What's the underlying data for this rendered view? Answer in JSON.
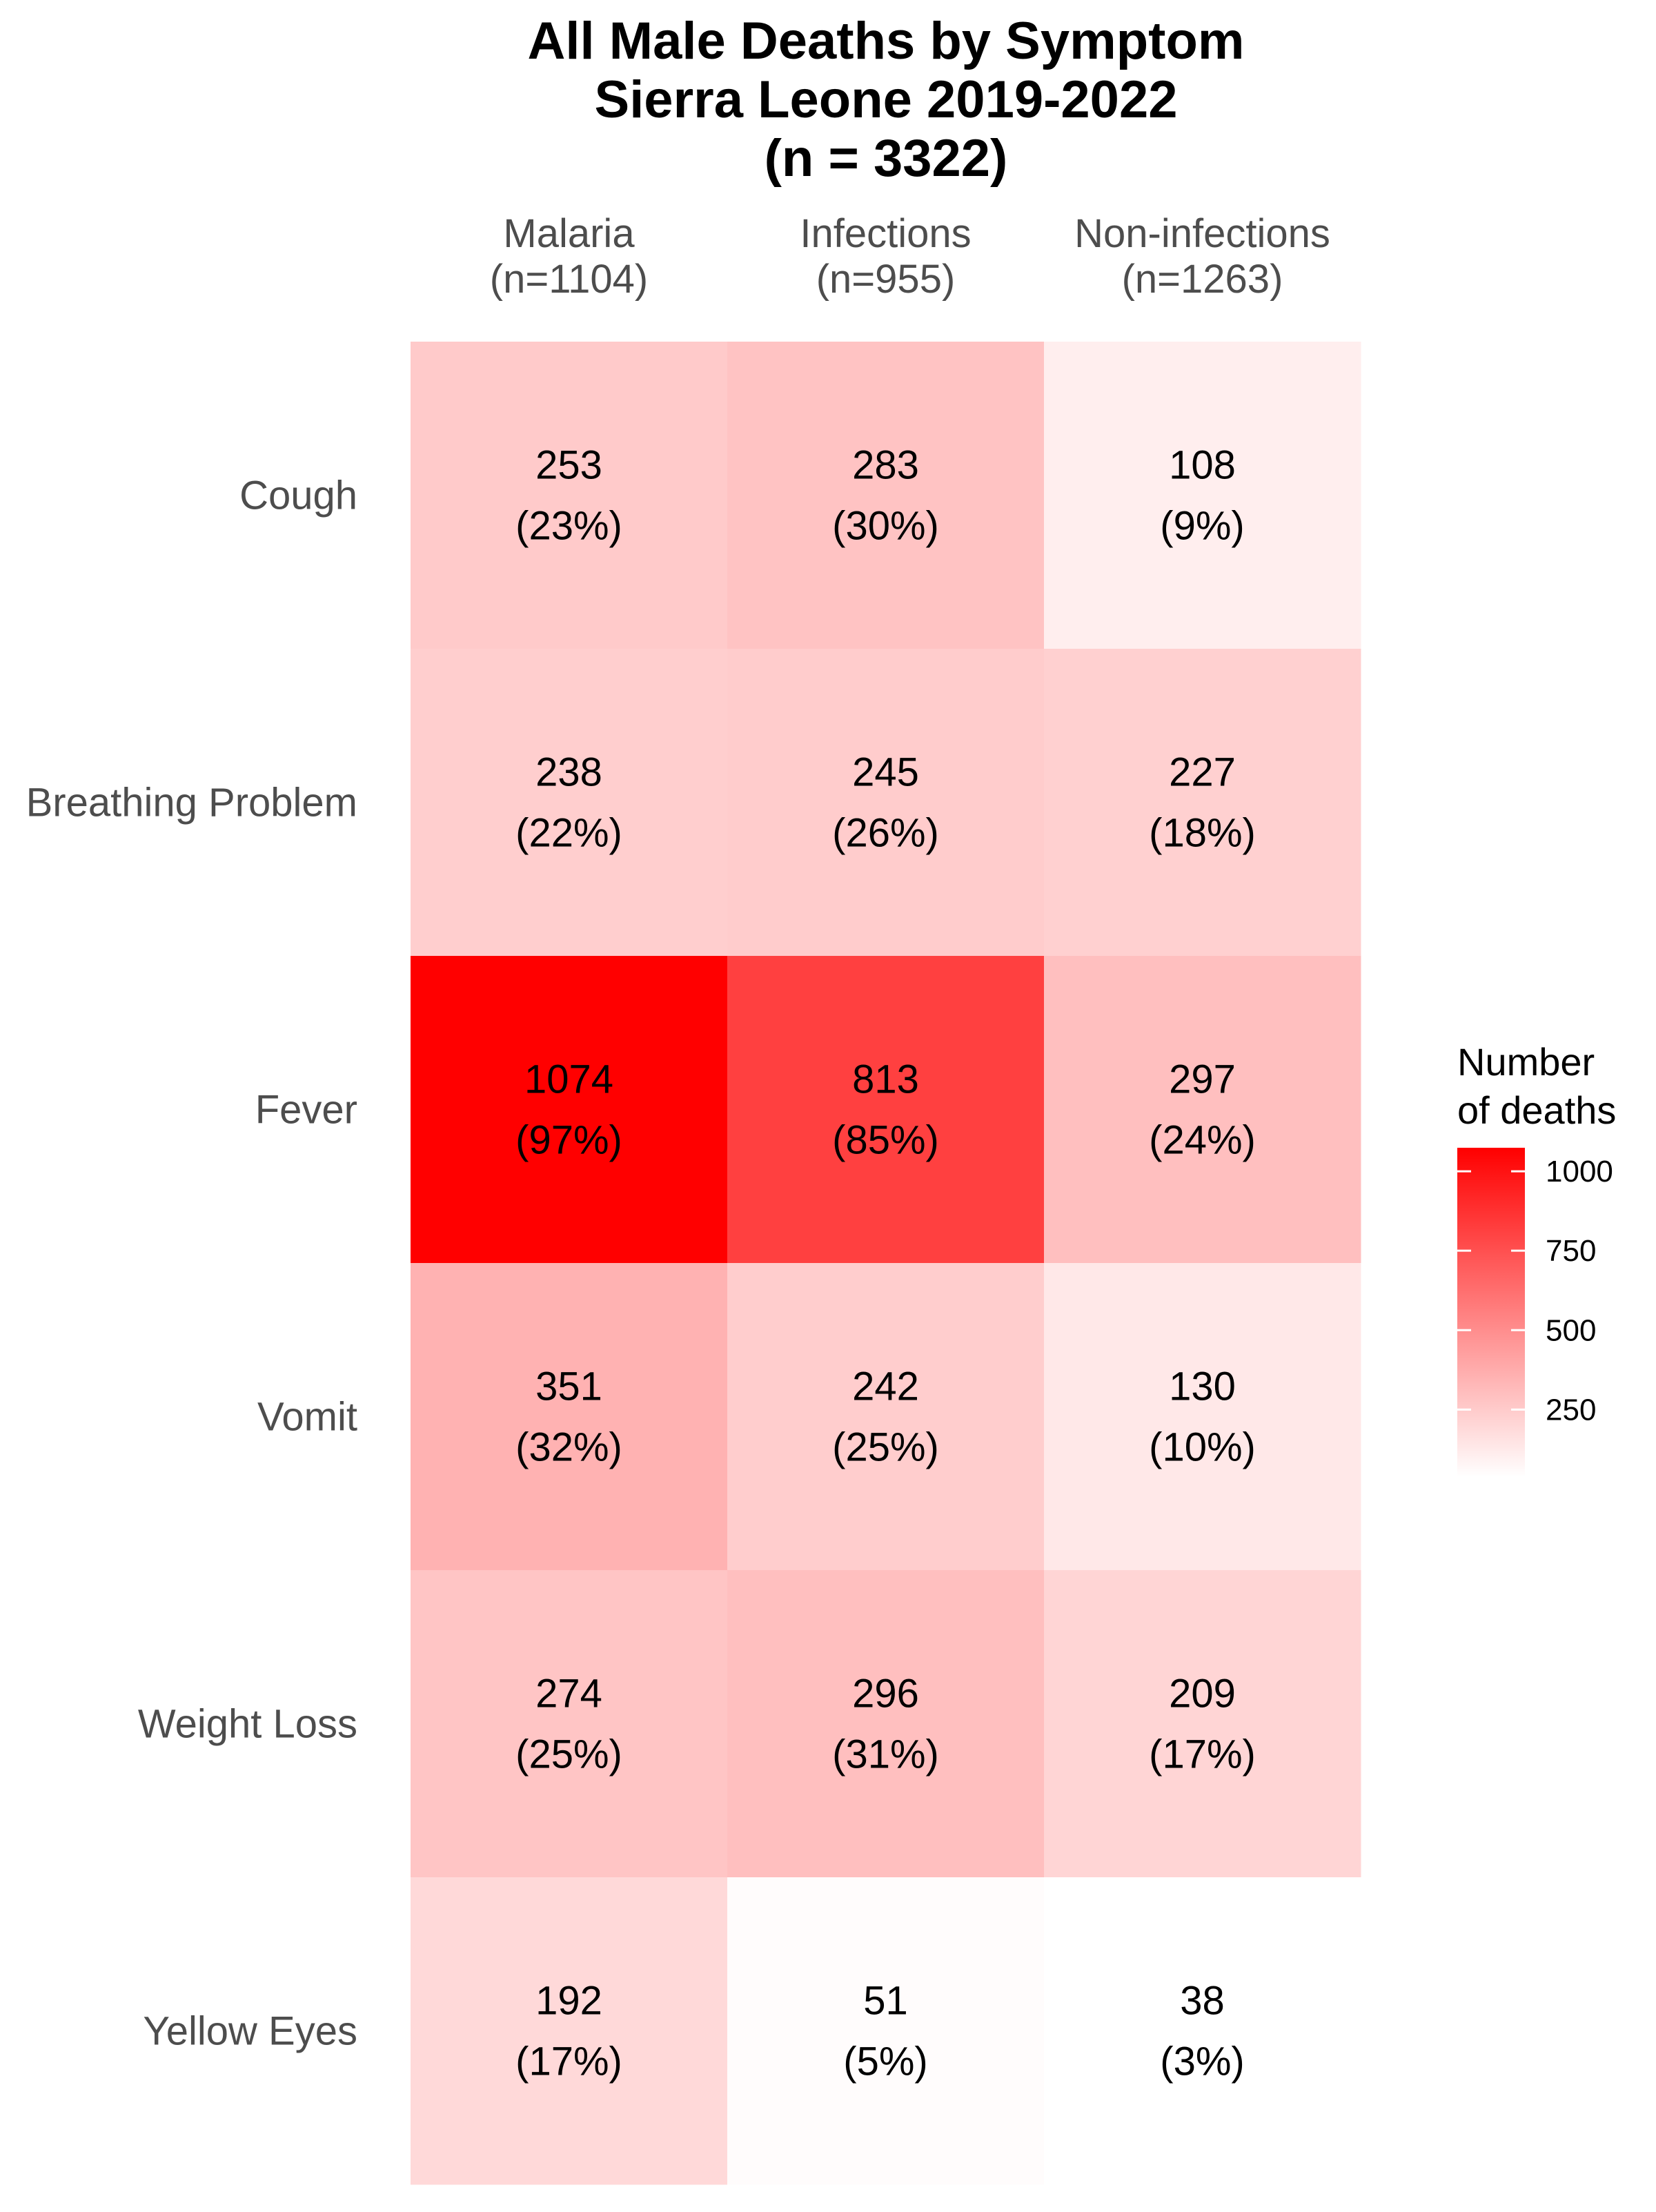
{
  "chart_data": {
    "type": "heatmap",
    "title": [
      "All Male Deaths by Symptom",
      "Sierra Leone 2019-2022",
      "(n = 3322)"
    ],
    "columns": [
      {
        "name": "Malaria",
        "n_label": "(n=1104)"
      },
      {
        "name": "Infections",
        "n_label": "(n=955)"
      },
      {
        "name": "Non-infections",
        "n_label": "(n=1263)"
      }
    ],
    "rows": [
      "Cough",
      "Breathing Problem",
      "Fever",
      "Vomit",
      "Weight Loss",
      "Yellow Eyes"
    ],
    "values": [
      [
        253,
        283,
        108
      ],
      [
        238,
        245,
        227
      ],
      [
        1074,
        813,
        297
      ],
      [
        351,
        242,
        130
      ],
      [
        274,
        296,
        209
      ],
      [
        192,
        51,
        38
      ]
    ],
    "percent_labels": [
      [
        "(23%)",
        "(30%)",
        "(9%)"
      ],
      [
        "(22%)",
        "(26%)",
        "(18%)"
      ],
      [
        "(97%)",
        "(85%)",
        "(24%)"
      ],
      [
        "(32%)",
        "(25%)",
        "(10%)"
      ],
      [
        "(25%)",
        "(31%)",
        "(17%)"
      ],
      [
        "(17%)",
        "(5%)",
        "(3%)"
      ]
    ],
    "legend": {
      "title": [
        "Number",
        "of deaths"
      ],
      "ticks": [
        250,
        500,
        750,
        1000
      ],
      "range": [
        38,
        1074
      ],
      "color_low": "#ffffff",
      "color_high": "#ff0000",
      "placement": "right"
    },
    "grid": false
  }
}
